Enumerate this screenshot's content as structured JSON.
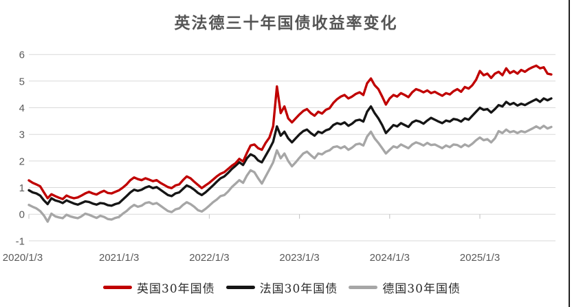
{
  "chart_data": {
    "type": "line",
    "title": "英法德三十年国债收益率变化",
    "xlabel": "",
    "ylabel": "",
    "ylim": [
      -1,
      6
    ],
    "grid": "horizontal",
    "legend_position": "bottom",
    "x_tick_labels": [
      "2020/1/3",
      "2021/1/3",
      "2022/1/3",
      "2023/1/3",
      "2024/1/3",
      "2025/1/3"
    ],
    "y_tick_labels": [
      "6",
      "5",
      "4",
      "3",
      "2",
      "1",
      "0",
      "-1"
    ],
    "points_per_year": 24,
    "x_start_label": "2020/1/3",
    "colors": {
      "grid": "#D9D9D9",
      "tick": "#BFBFBF",
      "axis_text": "#595959",
      "title_text": "#555555",
      "legend_text": "#2B2B2B",
      "right_border": "#1F1F1F",
      "background": "#FFFFFF"
    },
    "series": [
      {
        "id": "uk-30y",
        "name": "英国30年国债",
        "color": "#C00000",
        "values": [
          1.27,
          1.18,
          1.12,
          1.05,
          0.82,
          0.6,
          0.75,
          0.68,
          0.62,
          0.57,
          0.7,
          0.64,
          0.6,
          0.63,
          0.7,
          0.78,
          0.84,
          0.78,
          0.74,
          0.82,
          0.88,
          0.8,
          0.78,
          0.84,
          0.9,
          1.0,
          1.12,
          1.28,
          1.38,
          1.32,
          1.28,
          1.35,
          1.3,
          1.24,
          1.28,
          1.18,
          1.1,
          1.02,
          0.98,
          1.08,
          1.12,
          1.28,
          1.42,
          1.35,
          1.22,
          1.1,
          0.98,
          1.08,
          1.18,
          1.3,
          1.42,
          1.52,
          1.58,
          1.7,
          1.82,
          1.92,
          2.08,
          1.98,
          2.3,
          2.58,
          2.62,
          2.48,
          2.42,
          2.68,
          2.88,
          3.3,
          4.8,
          3.8,
          4.05,
          3.6,
          3.45,
          3.6,
          3.75,
          3.88,
          3.95,
          3.8,
          3.7,
          3.85,
          3.78,
          3.92,
          3.98,
          4.18,
          4.32,
          4.42,
          4.48,
          4.35,
          4.42,
          4.52,
          4.58,
          4.48,
          4.92,
          5.1,
          4.85,
          4.7,
          4.42,
          4.12,
          4.35,
          4.48,
          4.42,
          4.55,
          4.48,
          4.4,
          4.58,
          4.7,
          4.65,
          4.58,
          4.65,
          4.55,
          4.6,
          4.52,
          4.45,
          4.55,
          4.5,
          4.62,
          4.7,
          4.6,
          4.78,
          4.72,
          4.85,
          5.05,
          5.38,
          5.22,
          5.28,
          5.12,
          5.28,
          5.35,
          5.22,
          5.48,
          5.3,
          5.38,
          5.28,
          5.42,
          5.35,
          5.45,
          5.52,
          5.58,
          5.48,
          5.52,
          5.28,
          5.25
        ]
      },
      {
        "id": "france-30y",
        "name": "法国30年国债",
        "color": "#151515",
        "values": [
          0.9,
          0.82,
          0.78,
          0.7,
          0.52,
          0.38,
          0.6,
          0.52,
          0.48,
          0.42,
          0.52,
          0.46,
          0.4,
          0.36,
          0.42,
          0.48,
          0.46,
          0.4,
          0.36,
          0.42,
          0.4,
          0.34,
          0.32,
          0.38,
          0.42,
          0.55,
          0.68,
          0.82,
          0.92,
          0.88,
          0.92,
          1.0,
          1.05,
          0.98,
          1.02,
          0.92,
          0.82,
          0.72,
          0.68,
          0.78,
          0.82,
          0.95,
          1.08,
          1.02,
          0.92,
          0.8,
          0.72,
          0.82,
          0.95,
          1.08,
          1.22,
          1.35,
          1.42,
          1.55,
          1.7,
          1.82,
          1.95,
          1.85,
          2.1,
          2.25,
          2.18,
          2.02,
          1.95,
          2.2,
          2.45,
          2.72,
          3.3,
          2.95,
          3.1,
          2.85,
          2.7,
          2.85,
          3.0,
          3.12,
          3.18,
          3.05,
          2.95,
          3.1,
          3.05,
          3.15,
          3.2,
          3.35,
          3.42,
          3.38,
          3.45,
          3.32,
          3.4,
          3.52,
          3.55,
          3.48,
          3.85,
          4.05,
          3.8,
          3.6,
          3.35,
          3.05,
          3.2,
          3.35,
          3.3,
          3.42,
          3.35,
          3.28,
          3.45,
          3.52,
          3.48,
          3.4,
          3.52,
          3.62,
          3.55,
          3.48,
          3.42,
          3.52,
          3.48,
          3.58,
          3.55,
          3.48,
          3.6,
          3.55,
          3.7,
          3.85,
          4.0,
          3.92,
          3.95,
          3.82,
          3.95,
          4.1,
          4.05,
          4.22,
          4.12,
          4.18,
          4.08,
          4.15,
          4.1,
          4.18,
          4.25,
          4.32,
          4.22,
          4.35,
          4.28,
          4.35
        ]
      },
      {
        "id": "germany-30y",
        "name": "德国30年国债",
        "color": "#A6A6A6",
        "values": [
          0.35,
          0.28,
          0.22,
          0.12,
          -0.05,
          -0.28,
          0.02,
          -0.08,
          -0.12,
          -0.15,
          -0.02,
          -0.08,
          -0.12,
          -0.15,
          -0.08,
          0.02,
          -0.02,
          -0.08,
          -0.14,
          -0.06,
          -0.1,
          -0.18,
          -0.2,
          -0.14,
          -0.1,
          0.02,
          0.12,
          0.25,
          0.35,
          0.28,
          0.32,
          0.42,
          0.45,
          0.38,
          0.42,
          0.32,
          0.22,
          0.12,
          0.08,
          0.18,
          0.22,
          0.35,
          0.45,
          0.38,
          0.28,
          0.15,
          0.1,
          0.2,
          0.32,
          0.45,
          0.55,
          0.68,
          0.72,
          0.85,
          1.02,
          1.15,
          1.28,
          1.18,
          1.45,
          1.65,
          1.58,
          1.35,
          1.15,
          1.42,
          1.68,
          1.95,
          2.4,
          2.1,
          2.28,
          2.0,
          1.8,
          1.95,
          2.12,
          2.28,
          2.35,
          2.22,
          2.1,
          2.28,
          2.25,
          2.35,
          2.4,
          2.52,
          2.55,
          2.48,
          2.55,
          2.42,
          2.5,
          2.62,
          2.65,
          2.58,
          2.92,
          3.1,
          2.85,
          2.68,
          2.48,
          2.28,
          2.42,
          2.55,
          2.5,
          2.62,
          2.55,
          2.48,
          2.62,
          2.7,
          2.65,
          2.58,
          2.68,
          2.6,
          2.62,
          2.55,
          2.48,
          2.58,
          2.52,
          2.62,
          2.6,
          2.52,
          2.62,
          2.55,
          2.65,
          2.78,
          2.88,
          2.78,
          2.82,
          2.7,
          2.85,
          3.12,
          3.05,
          3.18,
          3.08,
          3.12,
          3.05,
          3.12,
          3.08,
          3.15,
          3.22,
          3.3,
          3.22,
          3.32,
          3.22,
          3.28
        ]
      }
    ]
  }
}
